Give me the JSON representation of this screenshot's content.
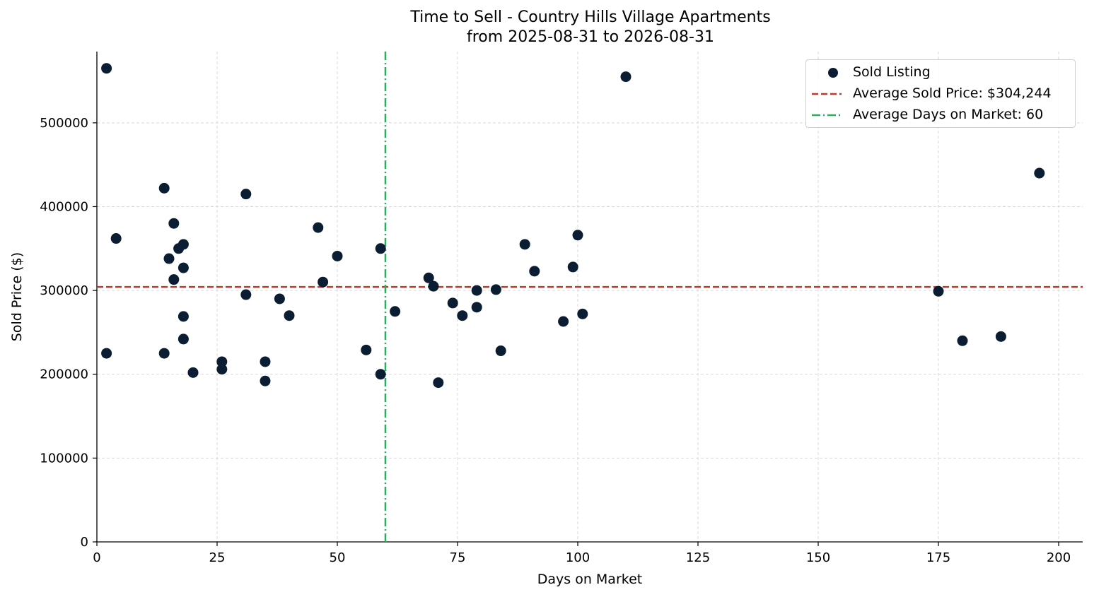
{
  "chart_data": {
    "type": "scatter",
    "title": "Time to Sell - Country Hills Village Apartments",
    "subtitle": "from 2025-08-31 to 2026-08-31",
    "xlabel": "Days on Market",
    "ylabel": "Sold Price ($)",
    "xlim": [
      0,
      205
    ],
    "ylim": [
      0,
      585000
    ],
    "xticks": [
      0,
      25,
      50,
      75,
      100,
      125,
      150,
      175,
      200
    ],
    "yticks": [
      0,
      100000,
      200000,
      300000,
      400000,
      500000
    ],
    "grid": true,
    "legend_position": "top-right",
    "colors": {
      "points": "#0b1d33",
      "avg_price": "#c0392b",
      "avg_days": "#27ae60"
    },
    "series": [
      {
        "name": "Sold Listing",
        "points": [
          [
            2,
            565000
          ],
          [
            2,
            225000
          ],
          [
            4,
            362000
          ],
          [
            14,
            422000
          ],
          [
            14,
            225000
          ],
          [
            15,
            338000
          ],
          [
            16,
            380000
          ],
          [
            16,
            313000
          ],
          [
            17,
            350000
          ],
          [
            18,
            355000
          ],
          [
            18,
            327000
          ],
          [
            18,
            269000
          ],
          [
            18,
            242000
          ],
          [
            20,
            202000
          ],
          [
            26,
            215000
          ],
          [
            26,
            206000
          ],
          [
            31,
            415000
          ],
          [
            31,
            295000
          ],
          [
            35,
            215000
          ],
          [
            35,
            192000
          ],
          [
            38,
            290000
          ],
          [
            40,
            270000
          ],
          [
            46,
            375000
          ],
          [
            47,
            310000
          ],
          [
            50,
            341000
          ],
          [
            56,
            229000
          ],
          [
            59,
            350000
          ],
          [
            59,
            200000
          ],
          [
            62,
            275000
          ],
          [
            69,
            315000
          ],
          [
            70,
            305000
          ],
          [
            71,
            190000
          ],
          [
            74,
            285000
          ],
          [
            76,
            270000
          ],
          [
            79,
            300000
          ],
          [
            79,
            280000
          ],
          [
            83,
            301000
          ],
          [
            84,
            228000
          ],
          [
            89,
            355000
          ],
          [
            91,
            323000
          ],
          [
            97,
            263000
          ],
          [
            99,
            328000
          ],
          [
            100,
            366000
          ],
          [
            101,
            272000
          ],
          [
            110,
            555000
          ],
          [
            175,
            299000
          ],
          [
            180,
            240000
          ],
          [
            188,
            245000
          ],
          [
            196,
            440000
          ]
        ]
      }
    ],
    "reference_lines": [
      {
        "name": "Average Sold Price: $304,244",
        "orientation": "horizontal",
        "value": 304244,
        "style": "dashed"
      },
      {
        "name": "Average Days on Market: 60",
        "orientation": "vertical",
        "value": 60,
        "style": "dashdot"
      }
    ]
  }
}
